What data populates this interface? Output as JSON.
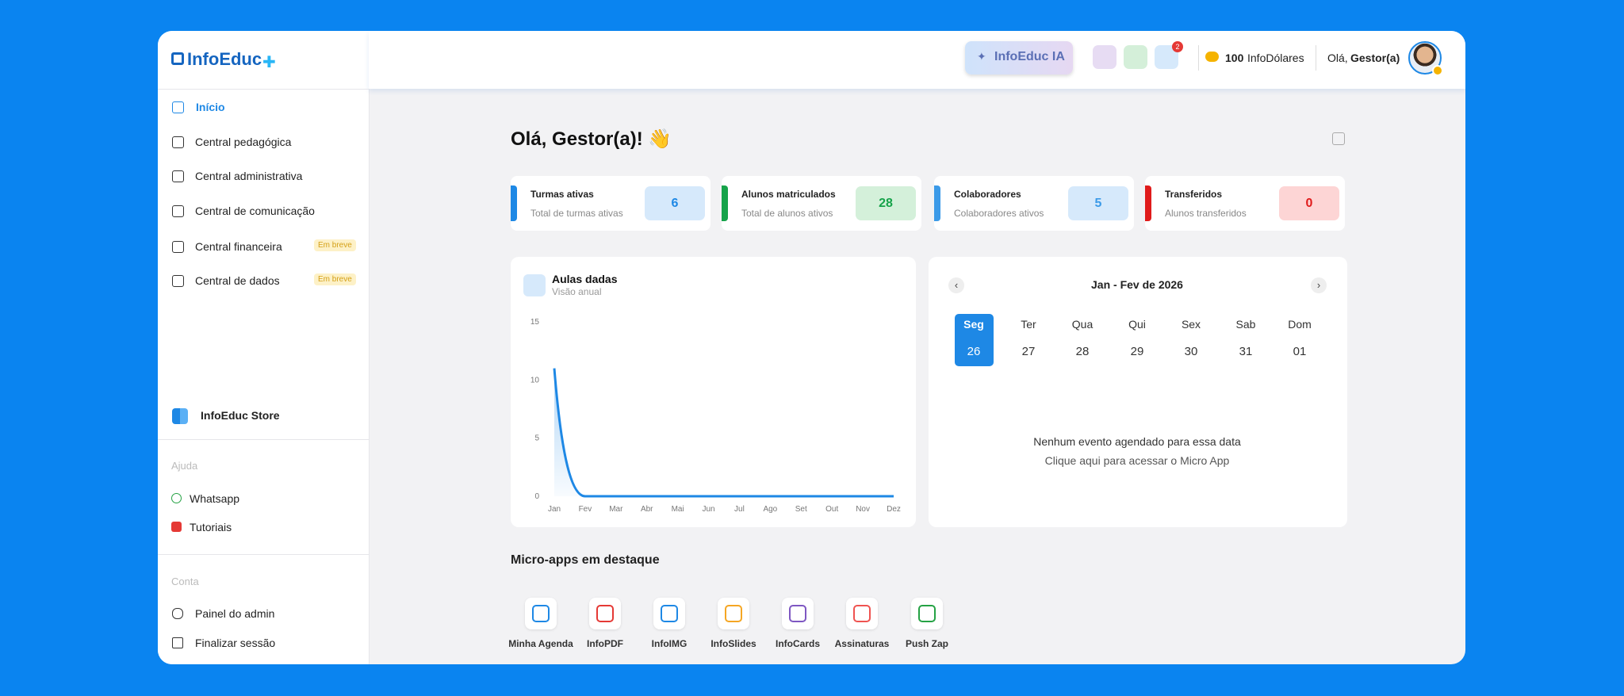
{
  "logo": "InfoEduc",
  "menu": [
    {
      "label": "Início"
    },
    {
      "label": "Central pedagógica"
    },
    {
      "label": "Central administrativa"
    },
    {
      "label": "Central de comunicação"
    },
    {
      "label": "Central financeira",
      "badge": "Em breve"
    },
    {
      "label": "Central de dados",
      "badge": "Em breve"
    }
  ],
  "store": "InfoEduc Store",
  "help": {
    "title": "Ajuda",
    "items": [
      "Whatsapp",
      "Tutoriais"
    ]
  },
  "account": {
    "title": "Conta",
    "items": [
      "Painel do admin",
      "Finalizar sessão"
    ]
  },
  "topbar": {
    "ai_button": "InfoEduc IA",
    "notifications": "2",
    "coins_amount": "100",
    "coins_label": "InfoDólares",
    "greeting": "Olá,",
    "user": "Gestor(a)"
  },
  "greeting": "Olá, Gestor(a)! 👋",
  "stats": [
    {
      "title": "Turmas ativas",
      "subtitle": "Total de turmas ativas",
      "value": 6
    },
    {
      "title": "Alunos matriculados",
      "subtitle": "Total de alunos ativos",
      "value": 28
    },
    {
      "title": "Colaboradores",
      "subtitle": "Colaboradores ativos",
      "value": 5
    },
    {
      "title": "Transferidos",
      "subtitle": "Alunos transferidos",
      "value": 0
    }
  ],
  "chart_data": {
    "type": "line",
    "title": "Aulas dadas",
    "subtitle": "Visão anual",
    "categories": [
      "Jan",
      "Fev",
      "Mar",
      "Abr",
      "Mai",
      "Jun",
      "Jul",
      "Ago",
      "Set",
      "Out",
      "Nov",
      "Dez"
    ],
    "values": [
      11,
      0,
      0,
      0,
      0,
      0,
      0,
      0,
      0,
      0,
      0,
      0
    ],
    "color": "#1e88e5",
    "ylim": [
      0,
      15
    ],
    "yticks": [
      0,
      5,
      10,
      15
    ]
  },
  "calendar": {
    "title": "Jan - Fev de 2026",
    "days": [
      {
        "name": "Seg",
        "date": "26"
      },
      {
        "name": "Ter",
        "date": "27"
      },
      {
        "name": "Qua",
        "date": "28"
      },
      {
        "name": "Qui",
        "date": "29"
      },
      {
        "name": "Sex",
        "date": "30"
      },
      {
        "name": "Sab",
        "date": "31"
      },
      {
        "name": "Dom",
        "date": "01"
      }
    ],
    "empty": "Nenhum evento agendado para essa data",
    "link": "Clique aqui para acessar o Micro App"
  },
  "microapps": {
    "title": "Micro-apps em destaque",
    "items": [
      "Minha Agenda",
      "InfoPDF",
      "InfoIMG",
      "InfoSlides",
      "InfoCards",
      "Assinaturas",
      "Push Zap"
    ]
  }
}
